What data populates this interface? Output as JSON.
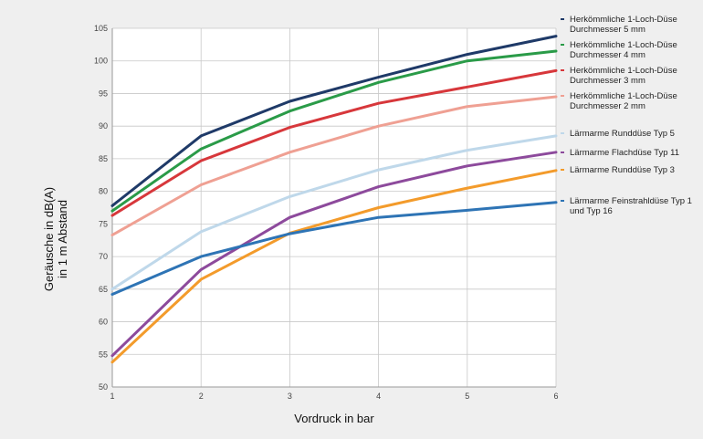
{
  "chart_data": {
    "type": "line",
    "title": "",
    "xlabel": "Vordruck in bar",
    "ylabel_lines": [
      "Geräusche in dB(A)",
      "in 1 m Abstand"
    ],
    "x": [
      1,
      2,
      3,
      4,
      5,
      6
    ],
    "xlim": [
      1,
      6
    ],
    "ylim": [
      50,
      105
    ],
    "yticks": [
      50,
      55,
      60,
      65,
      70,
      75,
      80,
      85,
      90,
      95,
      100,
      105
    ],
    "grid": true,
    "legend_position": "right",
    "series": [
      {
        "name": "Herkömmliche 1-Loch-Düse Durchmesser 5 mm",
        "legend_lines": [
          "Herkömmliche 1-Loch-Düse",
          "Durchmesser 5 mm"
        ],
        "color": "#1f3a68",
        "values": [
          77.8,
          88.5,
          93.8,
          97.5,
          101.0,
          103.8
        ]
      },
      {
        "name": "Herkömmliche 1-Loch-Düse Durchmesser 4 mm",
        "legend_lines": [
          "Herkömmliche 1-Loch-Düse",
          "Durchmesser 4 mm"
        ],
        "color": "#2a9b48",
        "values": [
          77.0,
          86.5,
          92.3,
          96.7,
          100.0,
          101.5
        ]
      },
      {
        "name": "Herkömmliche 1-Loch-Düse Durchmesser 3 mm",
        "legend_lines": [
          "Herkömmliche 1-Loch-Düse",
          "Durchmesser 3 mm"
        ],
        "color": "#d7373b",
        "values": [
          76.3,
          84.7,
          89.8,
          93.5,
          96.0,
          98.5
        ]
      },
      {
        "name": "Herkömmliche 1-Loch-Düse Durchmesser 2 mm",
        "legend_lines": [
          "Herkömmliche 1-Loch-Düse",
          "Durchmesser 2 mm"
        ],
        "color": "#efa093",
        "values": [
          73.3,
          81.0,
          86.0,
          90.0,
          93.0,
          94.5
        ]
      },
      {
        "name": "Lärmarme Runddüse Typ 5",
        "legend_lines": [
          "Lärmarme Runddüse Typ 5"
        ],
        "color": "#bfd8ea",
        "values": [
          65.0,
          73.8,
          79.2,
          83.3,
          86.3,
          88.5
        ]
      },
      {
        "name": "Lärmarme Flachdüse Typ 11",
        "legend_lines": [
          "Lärmarme Flachdüse Typ 11"
        ],
        "color": "#8d4a9c",
        "values": [
          54.8,
          68.0,
          76.0,
          80.7,
          83.9,
          86.0
        ]
      },
      {
        "name": "Lärmarme Runddüse Typ 3",
        "legend_lines": [
          "Lärmarme Runddüse Typ 3"
        ],
        "color": "#f39b2b",
        "values": [
          53.8,
          66.5,
          73.6,
          77.5,
          80.5,
          83.2
        ]
      },
      {
        "name": "Lärmarme Feinstrahldüse Typ 1 und Typ 16",
        "legend_lines": [
          "Lärmarme Feinstrahldüse Typ 1",
          "und Typ 16"
        ],
        "color": "#2e74b5",
        "values": [
          64.2,
          70.0,
          73.5,
          76.0,
          77.1,
          78.3
        ]
      }
    ]
  }
}
